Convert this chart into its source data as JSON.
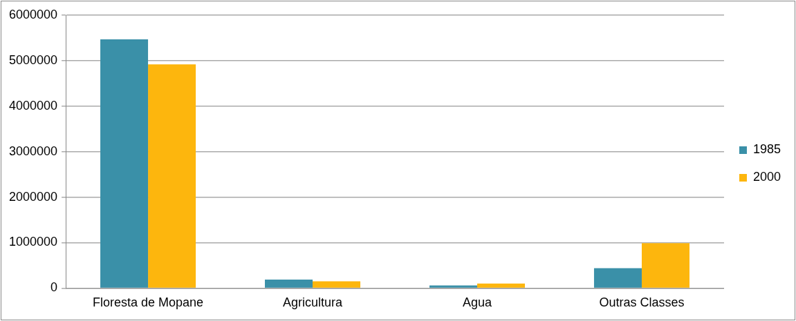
{
  "chart_data": {
    "type": "bar",
    "categories": [
      "Floresta de Mopane",
      "Agricultura",
      "Agua",
      "Outras Classes"
    ],
    "series": [
      {
        "name": "1985",
        "color": "#3a90a8",
        "values": [
          5470000,
          190000,
          60000,
          440000
        ]
      },
      {
        "name": "2000",
        "color": "#fdb60d",
        "values": [
          4920000,
          150000,
          100000,
          990000
        ]
      }
    ],
    "ylim": [
      0,
      6000000
    ],
    "yticks": [
      0,
      1000000,
      2000000,
      3000000,
      4000000,
      5000000,
      6000000
    ],
    "grid": "y",
    "legend": "right"
  }
}
